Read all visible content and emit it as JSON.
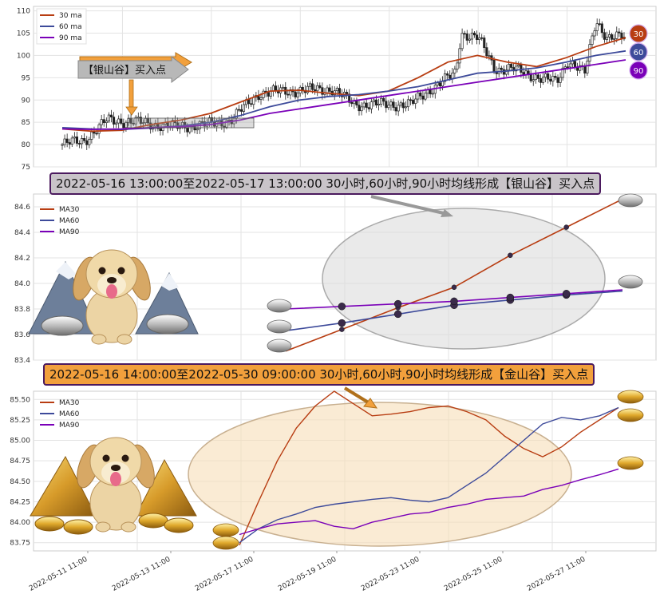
{
  "colors": {
    "ma30": "#b83d12",
    "ma60": "#3d4a9a",
    "ma90": "#7a00b8",
    "candle": "#222222",
    "grid": "#e3e3e3"
  },
  "panel1": {
    "legend": [
      "30 ma",
      "60 ma",
      "90 ma"
    ],
    "yticks": [
      "75",
      "80",
      "85",
      "90",
      "95",
      "100",
      "105",
      "110"
    ],
    "badges": [
      "30",
      "60",
      "90"
    ],
    "callout": "【银山谷】买入点"
  },
  "banner1": "2022-05-16 13:00:00至2022-05-17 13:00:00 30小时,60小时,90小时均线形成【银山谷】买入点",
  "banner2": "2022-05-16 14:00:00至2022-05-30 09:00:00 30小时,60小时,90小时均线形成【金山谷】买入点",
  "panel2": {
    "legend": [
      "MA30",
      "MA60",
      "MA90"
    ],
    "yticks": [
      "83.4",
      "83.6",
      "83.8",
      "84.0",
      "84.2",
      "84.4",
      "84.6"
    ]
  },
  "panel3": {
    "legend": [
      "MA30",
      "MA60",
      "MA90"
    ],
    "yticks": [
      "83.75",
      "84.00",
      "84.25",
      "84.50",
      "84.75",
      "85.00",
      "85.25",
      "85.50"
    ],
    "xticks": [
      "2022-05-11 11:00",
      "2022-05-13 11:00",
      "2022-05-17 11:00",
      "2022-05-19 11:00",
      "2022-05-23 11:00",
      "2022-05-25 11:00",
      "2022-05-27 11:00"
    ]
  },
  "chart_data": [
    {
      "type": "line",
      "ylim": [
        75,
        111
      ],
      "series": [
        {
          "name": "30 ma",
          "values": [
            83.5,
            83.0,
            83.2,
            84.5,
            85.5,
            87.0,
            89.5,
            92.0,
            92.2,
            91.5,
            91.0,
            92.0,
            95.0,
            98.5,
            100.0,
            98.5,
            97.5,
            99.5,
            102.0,
            104.0
          ]
        },
        {
          "name": "60 ma",
          "values": [
            83.8,
            83.5,
            83.4,
            83.7,
            84.2,
            85.0,
            86.5,
            88.5,
            90.0,
            90.8,
            91.2,
            92.0,
            93.0,
            94.5,
            96.0,
            96.5,
            97.2,
            98.5,
            100.0,
            101.0
          ]
        },
        {
          "name": "90 ma",
          "values": [
            83.5,
            83.4,
            83.5,
            83.8,
            84.0,
            84.5,
            85.5,
            87.0,
            88.0,
            89.0,
            90.0,
            91.0,
            92.0,
            93.0,
            94.0,
            95.0,
            96.0,
            97.0,
            98.0,
            99.0
          ]
        }
      ]
    },
    {
      "type": "line",
      "ylim": [
        83.4,
        84.7
      ],
      "series": [
        {
          "name": "MA30",
          "values": [
            83.47,
            83.64,
            83.81,
            83.97,
            84.22,
            84.44,
            84.66
          ]
        },
        {
          "name": "MA60",
          "values": [
            83.63,
            83.69,
            83.76,
            83.83,
            83.87,
            83.91,
            83.94
          ]
        },
        {
          "name": "MA90",
          "values": [
            83.8,
            83.82,
            83.84,
            83.86,
            83.89,
            83.92,
            83.95
          ]
        }
      ]
    },
    {
      "type": "line",
      "ylim": [
        83.65,
        85.6
      ],
      "series": [
        {
          "name": "MA30",
          "values": [
            83.72,
            84.25,
            84.75,
            85.15,
            85.42,
            85.6,
            85.45,
            85.3,
            85.32,
            85.35,
            85.4,
            85.42,
            85.35,
            85.25,
            85.05,
            84.9,
            84.8,
            84.92,
            85.1,
            85.25,
            85.4
          ]
        },
        {
          "name": "MA60",
          "values": [
            83.75,
            83.92,
            84.03,
            84.1,
            84.18,
            84.22,
            84.25,
            84.28,
            84.3,
            84.27,
            84.25,
            84.3,
            84.45,
            84.6,
            84.8,
            85.0,
            85.2,
            85.28,
            85.25,
            85.3,
            85.4
          ]
        },
        {
          "name": "MA90",
          "values": [
            83.85,
            83.92,
            83.98,
            84.0,
            84.02,
            83.95,
            83.92,
            84.0,
            84.05,
            84.1,
            84.12,
            84.18,
            84.22,
            84.28,
            84.3,
            84.32,
            84.4,
            84.45,
            84.52,
            84.58,
            84.65
          ]
        }
      ]
    }
  ]
}
